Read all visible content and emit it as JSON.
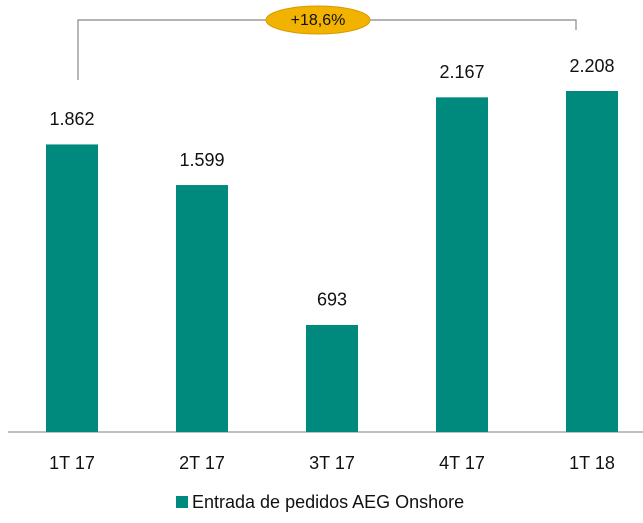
{
  "chart_data": {
    "type": "bar",
    "categories": [
      "1T 17",
      "2T 17",
      "3T 17",
      "4T 17",
      "1T 18"
    ],
    "series": [
      {
        "name": "Entrada de pedidos AEG Onshore",
        "color": "#008a7e",
        "values": [
          1862,
          1599,
          693,
          2167,
          2208
        ],
        "value_labels": [
          "1.862",
          "1.599",
          "693",
          "2.167",
          "2.208"
        ]
      }
    ],
    "annotation": "+18,6%",
    "legend": "bottom"
  }
}
